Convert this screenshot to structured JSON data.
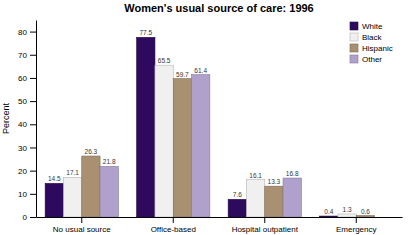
{
  "chart_data": {
    "type": "bar",
    "title": "Women's usual source of care: 1996",
    "categories": [
      "No usual source",
      "Office-based",
      "Hospital outpatient",
      "Emergency"
    ],
    "series": [
      {
        "name": "White",
        "color": "#2d0a5e",
        "values": [
          14.5,
          77.5,
          7.6,
          0.4
        ]
      },
      {
        "name": "Black",
        "color": "#f0f0f0",
        "values": [
          17.1,
          65.5,
          16.1,
          1.3
        ]
      },
      {
        "name": "Hispanic",
        "color": "#a89070",
        "values": [
          26.3,
          59.7,
          13.3,
          0.6
        ]
      },
      {
        "name": "Other",
        "color": "#b0a0cc",
        "values": [
          21.8,
          61.4,
          16.8,
          0.0
        ]
      }
    ],
    "ylabel": "Percent",
    "ylim": [
      0,
      85
    ],
    "yticks": [
      0,
      10,
      20,
      30,
      40,
      50,
      60,
      70,
      80
    ],
    "data_labels": true,
    "grid": false,
    "legend": "upper-right"
  }
}
